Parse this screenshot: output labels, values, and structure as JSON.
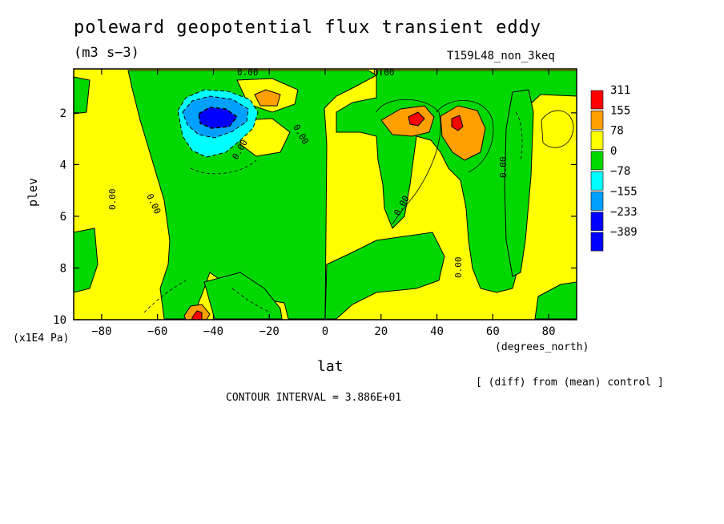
{
  "chart_data": {
    "type": "heatmap",
    "title": "poleward geopotential flux transient eddy",
    "units": "(m3 s−3)",
    "run_label": "T159L48_non_3keq",
    "xlabel": "lat",
    "x_units": "(degrees_north)",
    "ylabel": "plev",
    "y_units": "(x1E4 Pa)",
    "xlim": [
      -90,
      90
    ],
    "ylim": [
      10,
      0.3
    ],
    "x_ticks": [
      -80,
      -60,
      -40,
      -20,
      0,
      20,
      40,
      60,
      80
    ],
    "x_tick_labels": [
      "−80",
      "−60",
      "−40",
      "−20",
      "0",
      "20",
      "40",
      "60",
      "80"
    ],
    "y_ticks": [
      2,
      4,
      6,
      8,
      10
    ],
    "y_tick_labels": [
      "2",
      "4",
      "6",
      "8",
      "10"
    ],
    "contour_interval": "CONTOUR INTERVAL = 3.886E+01",
    "note": "[ (diff) from (mean) control ]",
    "contour_label": "0.00",
    "colorbar": {
      "labels": [
        "311",
        "155",
        "78",
        "0",
        "−78",
        "−155",
        "−233",
        "−389"
      ],
      "colors": [
        "#ff0000",
        "#ff9f00",
        "#ffff00",
        "#00d800",
        "#00ffff",
        "#00a0ff",
        "#0000ff",
        "#0000ff"
      ]
    },
    "features": [
      {
        "kind": "min",
        "lat": -40,
        "plev": 2.0,
        "value": -389
      },
      {
        "kind": "max",
        "lat": 32,
        "plev": 2.1,
        "value": 311
      },
      {
        "kind": "max",
        "lat": 47,
        "plev": 2.3,
        "value": 311
      },
      {
        "kind": "max",
        "lat": -28,
        "plev": 1.2,
        "value": 78
      },
      {
        "kind": "max",
        "lat": -45,
        "plev": 9.9,
        "value": 155
      }
    ]
  }
}
